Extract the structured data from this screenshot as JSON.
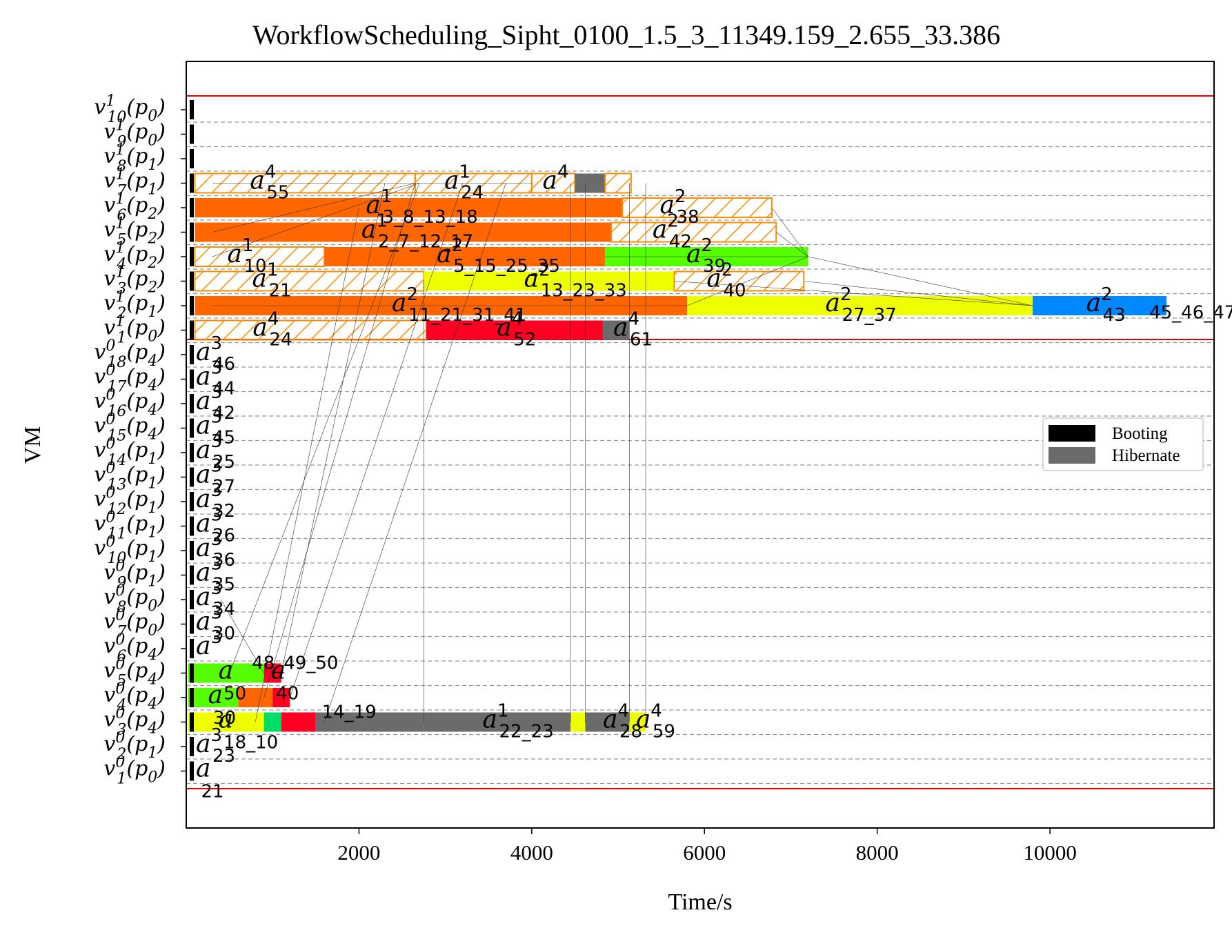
{
  "chart_data": {
    "type": "gantt",
    "title": "WorkflowScheduling_Sipht_0100_1.5_3_11349.159_2.655_33.386",
    "xlabel": "Time/s",
    "ylabel": "VM",
    "xlim": [
      0,
      11900
    ],
    "x_ticks": [
      2000,
      4000,
      6000,
      8000,
      10000
    ],
    "grid": "horizontal dashed",
    "legend_position": "center-right",
    "legend": [
      {
        "label": "Booting",
        "color": "#000000"
      },
      {
        "label": "Hibernate",
        "color": "#6b6b6b"
      }
    ],
    "vm_rows": [
      {
        "vm": "v",
        "sup": "1",
        "sub": "10",
        "type": "p",
        "type_sub": "0"
      },
      {
        "vm": "v",
        "sup": "1",
        "sub": "9",
        "type": "p",
        "type_sub": "0"
      },
      {
        "vm": "v",
        "sup": "1",
        "sub": "8",
        "type": "p",
        "type_sub": "1"
      },
      {
        "vm": "v",
        "sup": "1",
        "sub": "7",
        "type": "p",
        "type_sub": "1"
      },
      {
        "vm": "v",
        "sup": "1",
        "sub": "6",
        "type": "p",
        "type_sub": "2"
      },
      {
        "vm": "v",
        "sup": "1",
        "sub": "5",
        "type": "p",
        "type_sub": "2"
      },
      {
        "vm": "v",
        "sup": "1",
        "sub": "4",
        "type": "p",
        "type_sub": "2"
      },
      {
        "vm": "v",
        "sup": "1",
        "sub": "3",
        "type": "p",
        "type_sub": "2"
      },
      {
        "vm": "v",
        "sup": "1",
        "sub": "2",
        "type": "p",
        "type_sub": "1"
      },
      {
        "vm": "v",
        "sup": "1",
        "sub": "1",
        "type": "p",
        "type_sub": "0"
      },
      {
        "vm": "v",
        "sup": "0",
        "sub": "18",
        "type": "p",
        "type_sub": "4"
      },
      {
        "vm": "v",
        "sup": "0",
        "sub": "17",
        "type": "p",
        "type_sub": "4"
      },
      {
        "vm": "v",
        "sup": "0",
        "sub": "16",
        "type": "p",
        "type_sub": "4"
      },
      {
        "vm": "v",
        "sup": "0",
        "sub": "15",
        "type": "p",
        "type_sub": "4"
      },
      {
        "vm": "v",
        "sup": "0",
        "sub": "14",
        "type": "p",
        "type_sub": "1"
      },
      {
        "vm": "v",
        "sup": "0",
        "sub": "13",
        "type": "p",
        "type_sub": "1"
      },
      {
        "vm": "v",
        "sup": "0",
        "sub": "12",
        "type": "p",
        "type_sub": "1"
      },
      {
        "vm": "v",
        "sup": "0",
        "sub": "11",
        "type": "p",
        "type_sub": "1"
      },
      {
        "vm": "v",
        "sup": "0",
        "sub": "10",
        "type": "p",
        "type_sub": "1"
      },
      {
        "vm": "v",
        "sup": "0",
        "sub": "9",
        "type": "p",
        "type_sub": "1"
      },
      {
        "vm": "v",
        "sup": "0",
        "sub": "8",
        "type": "p",
        "type_sub": "0"
      },
      {
        "vm": "v",
        "sup": "0",
        "sub": "7",
        "type": "p",
        "type_sub": "0"
      },
      {
        "vm": "v",
        "sup": "0",
        "sub": "6",
        "type": "p",
        "type_sub": "4"
      },
      {
        "vm": "v",
        "sup": "0",
        "sub": "5",
        "type": "p",
        "type_sub": "4"
      },
      {
        "vm": "v",
        "sup": "0",
        "sub": "4",
        "type": "p",
        "type_sub": "4"
      },
      {
        "vm": "v",
        "sup": "0",
        "sub": "3",
        "type": "p",
        "type_sub": "4"
      },
      {
        "vm": "v",
        "sup": "0",
        "sub": "2",
        "type": "p",
        "type_sub": "1"
      },
      {
        "vm": "v",
        "sup": "0",
        "sub": "1",
        "type": "p",
        "type_sub": "0"
      }
    ],
    "bars": [
      {
        "row": 3,
        "start": 100,
        "end": 2650,
        "color": "#ff8c00",
        "hatch": true,
        "sup": "4",
        "sub": "55"
      },
      {
        "row": 3,
        "start": 2650,
        "end": 4000,
        "color": "#ff8c00",
        "hatch": true,
        "sup": "1",
        "sub": "24"
      },
      {
        "row": 3,
        "start": 4000,
        "end": 4500,
        "color": "#ff8c00",
        "hatch": true,
        "sup": "4",
        "sub": ""
      },
      {
        "row": 3,
        "start": 4500,
        "end": 4850,
        "color": "#6b6b6b",
        "hatch": false,
        "sup": "",
        "sub": ""
      },
      {
        "row": 3,
        "start": 4850,
        "end": 5150,
        "color": "#ff8c00",
        "hatch": true,
        "sup": "",
        "sub": ""
      },
      {
        "row": 4,
        "start": 100,
        "end": 5050,
        "color": "#ff6600",
        "hatch": false,
        "sup": "1",
        "sub": "3_8_13_18"
      },
      {
        "row": 4,
        "start": 5050,
        "end": 6780,
        "color": "#ff8c00",
        "hatch": true,
        "sup": "2",
        "sub": "38"
      },
      {
        "row": 5,
        "start": 100,
        "end": 4920,
        "color": "#ff6600",
        "hatch": false,
        "sup": "1",
        "sub": "2_7_12_17"
      },
      {
        "row": 5,
        "start": 4920,
        "end": 6830,
        "color": "#ff8c00",
        "hatch": true,
        "sup": "2",
        "sub": "42"
      },
      {
        "row": 6,
        "start": 100,
        "end": 1600,
        "color": "#ff8c00",
        "hatch": true,
        "sup": "1",
        "sub": "10"
      },
      {
        "row": 6,
        "start": 1600,
        "end": 4850,
        "color": "#ff6600",
        "hatch": false,
        "sup": "2",
        "sub": "5_15_25_35"
      },
      {
        "row": 6,
        "start": 4850,
        "end": 7200,
        "color": "#55ff00",
        "hatch": false,
        "sup": "2",
        "sub": "39"
      },
      {
        "row": 7,
        "start": 100,
        "end": 2750,
        "color": "#ff8c00",
        "hatch": true,
        "sup": "1",
        "sub": "21"
      },
      {
        "row": 7,
        "start": 2750,
        "end": 5650,
        "color": "#eeff00",
        "hatch": false,
        "sup": "2",
        "sub": "13_23_33"
      },
      {
        "row": 7,
        "start": 5650,
        "end": 7150,
        "color": "#ff8c00",
        "hatch": true,
        "sup": "2",
        "sub": "40"
      },
      {
        "row": 8,
        "start": 100,
        "end": 5800,
        "color": "#ff6600",
        "hatch": false,
        "sup": "2",
        "sub": "11_21_31_41"
      },
      {
        "row": 8,
        "start": 5800,
        "end": 9800,
        "color": "#eeff00",
        "hatch": false,
        "sup": "2",
        "sub": "27_37"
      },
      {
        "row": 8,
        "start": 9800,
        "end": 11349,
        "color": "#0088ff",
        "hatch": false,
        "sup": "2",
        "sub": "43"
      },
      {
        "row": 9,
        "start": 100,
        "end": 2780,
        "color": "#ff8c00",
        "hatch": true,
        "sup": "4",
        "sub": "24"
      },
      {
        "row": 9,
        "start": 2780,
        "end": 4820,
        "color": "#ff0022",
        "hatch": false,
        "sup": "4",
        "sub": "52"
      },
      {
        "row": 9,
        "start": 4820,
        "end": 5130,
        "color": "#6b6b6b",
        "hatch": false,
        "sup": "4",
        "sub": "61"
      },
      {
        "row": 23,
        "start": 20,
        "end": 900,
        "color": "#55ff00",
        "hatch": false,
        "sup": "",
        "sub": "50"
      },
      {
        "row": 23,
        "start": 900,
        "end": 1100,
        "color": "#ff0022",
        "hatch": false,
        "sup": "",
        "sub": "40"
      },
      {
        "row": 24,
        "start": 20,
        "end": 600,
        "color": "#55ff00",
        "hatch": false,
        "sup": "",
        "sub": "30"
      },
      {
        "row": 24,
        "start": 600,
        "end": 1000,
        "color": "#ff6600",
        "hatch": false,
        "sup": "",
        "sub": ""
      },
      {
        "row": 24,
        "start": 1000,
        "end": 1200,
        "color": "#ff0022",
        "hatch": false,
        "sup": "",
        "sub": ""
      },
      {
        "row": 25,
        "start": 20,
        "end": 900,
        "color": "#eeff00",
        "hatch": false,
        "sup": "",
        "sub": "18_10"
      },
      {
        "row": 25,
        "start": 900,
        "end": 1100,
        "color": "#00dd66",
        "hatch": false,
        "sup": "",
        "sub": ""
      },
      {
        "row": 25,
        "start": 1100,
        "end": 1500,
        "color": "#ff0022",
        "hatch": false,
        "sup": "",
        "sub": ""
      },
      {
        "row": 25,
        "start": 1500,
        "end": 2750,
        "color": "#6b6b6b",
        "hatch": false,
        "sup": "",
        "sub": ""
      },
      {
        "row": 25,
        "start": 2750,
        "end": 4450,
        "color": "#6b6b6b",
        "hatch": false,
        "sup": "1",
        "sub": "22_23"
      },
      {
        "row": 25,
        "start": 4450,
        "end": 4620,
        "color": "#eeff00",
        "hatch": false,
        "sup": "",
        "sub": ""
      },
      {
        "row": 25,
        "start": 4620,
        "end": 5130,
        "color": "#6b6b6b",
        "hatch": false,
        "sup": "4",
        "sub": "28"
      },
      {
        "row": 25,
        "start": 5130,
        "end": 5320,
        "color": "#eeff00",
        "hatch": false,
        "sup": "4",
        "sub": "59"
      }
    ],
    "row_labels": [
      {
        "row": 10,
        "sup": "3",
        "sub": "46"
      },
      {
        "row": 11,
        "sup": "3",
        "sub": "44"
      },
      {
        "row": 12,
        "sup": "3",
        "sub": "42"
      },
      {
        "row": 13,
        "sup": "3",
        "sub": "45"
      },
      {
        "row": 14,
        "sup": "3",
        "sub": "25"
      },
      {
        "row": 15,
        "sup": "3",
        "sub": "27"
      },
      {
        "row": 16,
        "sup": "3",
        "sub": "32"
      },
      {
        "row": 17,
        "sup": "3",
        "sub": "26"
      },
      {
        "row": 18,
        "sup": "3",
        "sub": "36"
      },
      {
        "row": 19,
        "sup": "3",
        "sub": "35"
      },
      {
        "row": 20,
        "sup": "3",
        "sub": "34"
      },
      {
        "row": 21,
        "sup": "3",
        "sub": "30"
      },
      {
        "row": 22,
        "sup": "3",
        "sub": ""
      },
      {
        "row": 26,
        "sup": "3",
        "sub": "23"
      },
      {
        "row": 27,
        "sup": "",
        "sub": "21"
      }
    ],
    "extra_text": [
      {
        "text": "48_49_50",
        "x": 760,
        "row": 22.6
      },
      {
        "text": "14_19",
        "x": 1570,
        "row": 24.6
      },
      {
        "text": "45_46_47",
        "x": 11150,
        "row": 8.3
      }
    ]
  }
}
